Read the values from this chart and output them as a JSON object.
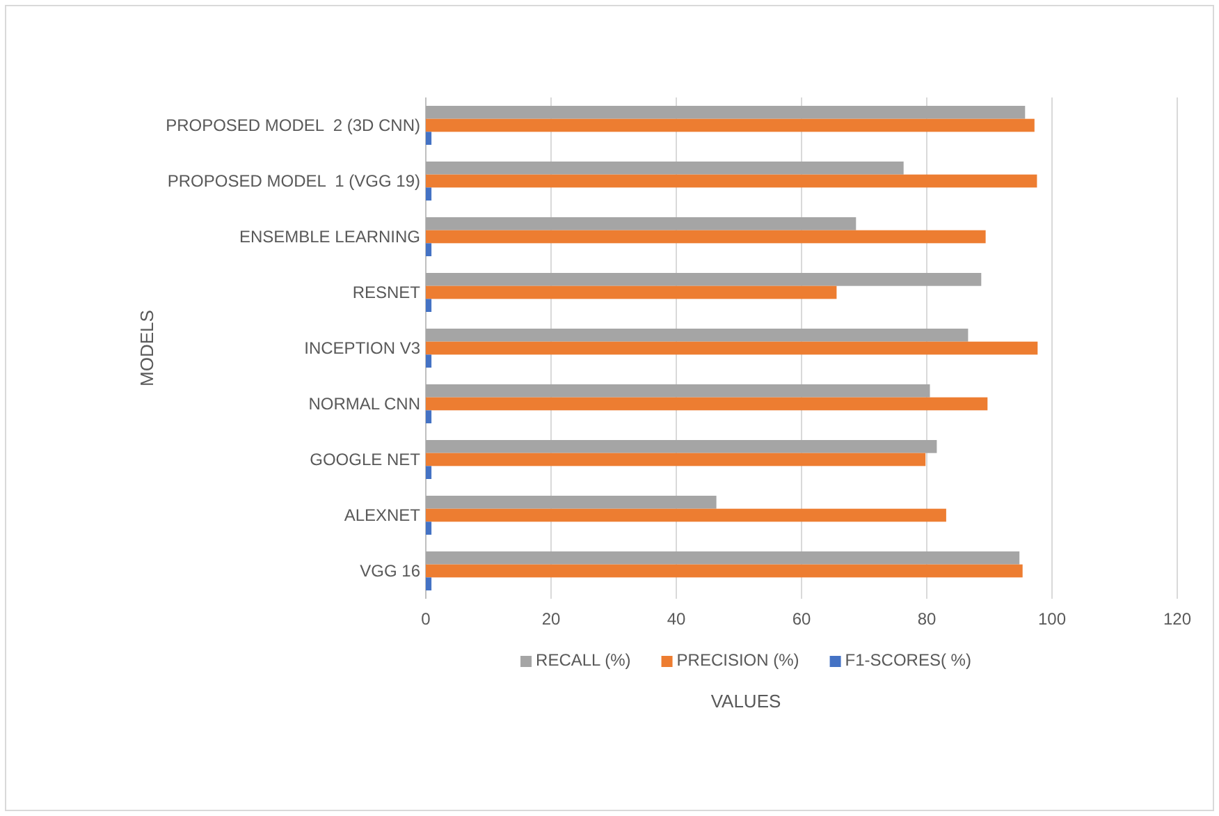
{
  "chart_data": {
    "type": "bar",
    "orientation": "horizontal",
    "xlabel": "VALUES",
    "ylabel": "MODELS",
    "categories": [
      "PROPOSED MODEL  2 (3D CNN)",
      "PROPOSED MODEL  1 (VGG 19)",
      "ENSEMBLE LEARNING",
      "RESNET",
      "INCEPTION V3",
      "NORMAL CNN",
      "GOOGLE NET",
      "ALEXNET",
      "VGG 16"
    ],
    "series": [
      {
        "name": "RECALL  (%)",
        "color": "#a5a5a5",
        "values": [
          95.7,
          76.3,
          68.7,
          88.7,
          86.6,
          80.5,
          81.6,
          46.4,
          94.8
        ]
      },
      {
        "name": "PRECISION (%)",
        "color": "#ed7d31",
        "values": [
          97.2,
          97.6,
          89.4,
          65.6,
          97.7,
          89.7,
          79.8,
          83.1,
          95.3
        ]
      },
      {
        "name": "F1-SCORES( %)",
        "color": "#4472c4",
        "values": [
          0.9,
          0.9,
          0.9,
          0.9,
          0.9,
          0.9,
          0.9,
          0.9,
          0.9
        ]
      }
    ],
    "xlim": [
      0,
      120
    ],
    "xticks": [
      0,
      20,
      40,
      60,
      80,
      100,
      120
    ],
    "grid": "x",
    "legend": "bottom"
  }
}
